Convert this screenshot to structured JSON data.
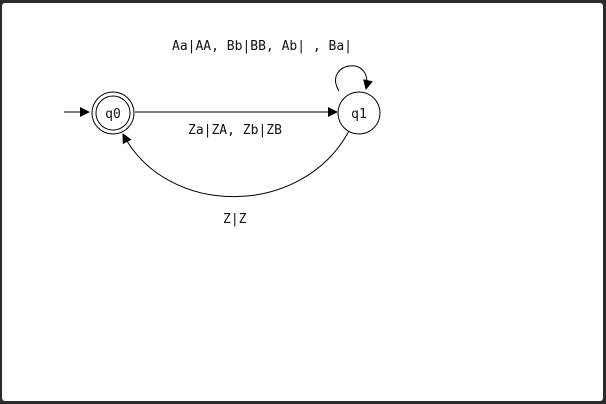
{
  "diagram": {
    "type": "pushdown automaton state diagram",
    "states": [
      {
        "id": "q0",
        "label": "q0",
        "accepting": true,
        "initial": true
      },
      {
        "id": "q1",
        "label": "q1",
        "accepting": false,
        "initial": false
      }
    ],
    "transitions": [
      {
        "from": "q0",
        "to": "q1",
        "label": "Za|ZA, Zb|ZB"
      },
      {
        "from": "q1",
        "to": "q1",
        "label": "Aa|AA, Bb|BB, Ab| , Ba|"
      },
      {
        "from": "q1",
        "to": "q0",
        "label": "Z|Z"
      }
    ]
  },
  "colors": {
    "background": "#ffffff",
    "frame": "#2b2b2b",
    "stroke": "#000000"
  }
}
